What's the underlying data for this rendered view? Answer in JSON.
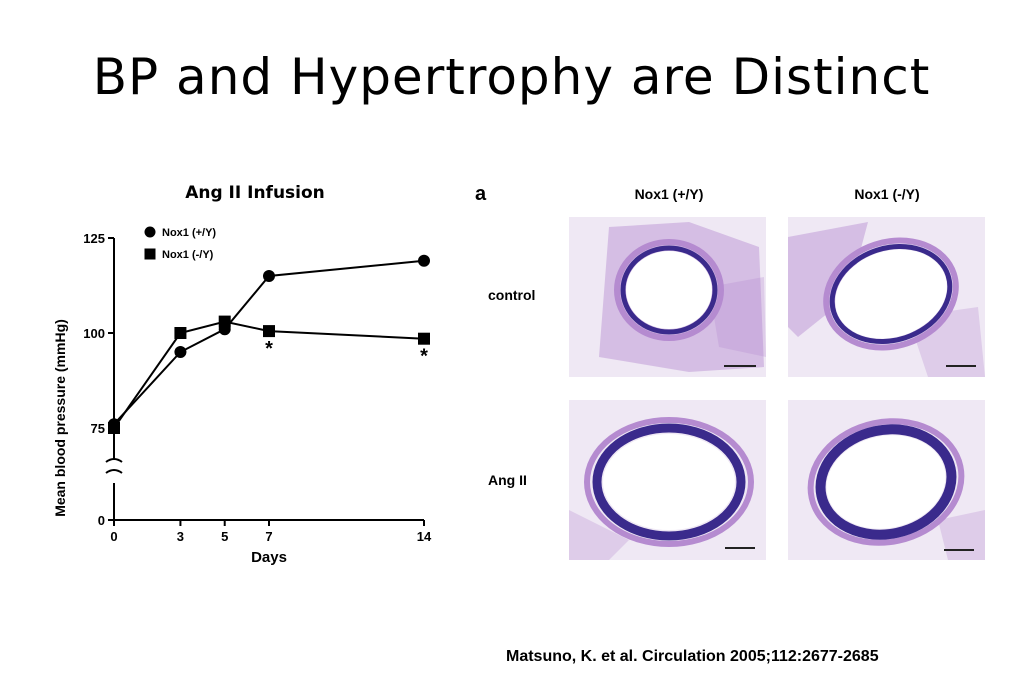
{
  "slide": {
    "title": "BP and Hypertrophy are Distinct",
    "citation": "Matsuno, K. et al. Circulation 2005;112:2677-2685"
  },
  "chart_data": {
    "type": "line",
    "title": "Ang II Infusion",
    "xlabel": "Days",
    "ylabel": "Mean blood pressure (mmHg)",
    "x": [
      0,
      3,
      5,
      7,
      14
    ],
    "x_ticks": [
      "0",
      "3",
      "5",
      "7",
      "14"
    ],
    "y_ticks": [
      "0",
      "75",
      "100",
      "125"
    ],
    "ylim": [
      0,
      125
    ],
    "axis_break": true,
    "legend_placement": "top-left",
    "series": [
      {
        "name": "Nox1 (+/Y)",
        "marker": "circle",
        "values": [
          76,
          95,
          101,
          115,
          119
        ]
      },
      {
        "name": "Nox1 (-/Y)",
        "marker": "square",
        "values": [
          75,
          100,
          103,
          100.5,
          98.5
        ]
      }
    ],
    "annotations": [
      {
        "x": 7,
        "text": "*"
      },
      {
        "x": 14,
        "text": "*"
      }
    ]
  },
  "histology": {
    "panel_letter": "a",
    "columns": [
      "Nox1 (+/Y)",
      "Nox1 (-/Y)"
    ],
    "rows": [
      "control",
      "Ang II"
    ]
  },
  "colors": {
    "stain_wall": "#3a2a8c",
    "stain_tissue": "#b58bd0",
    "stain_background": "#efe8f4"
  }
}
